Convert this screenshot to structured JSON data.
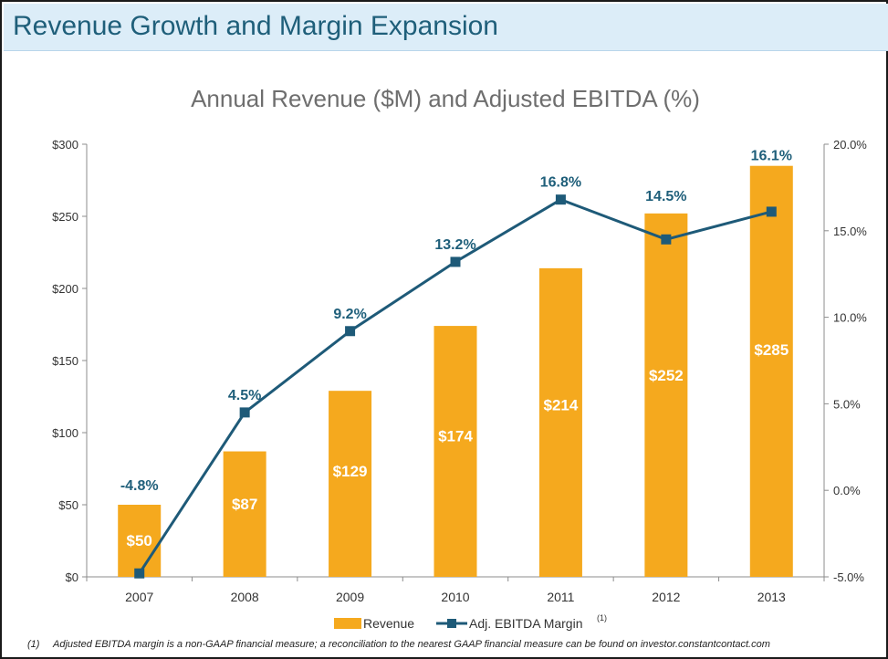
{
  "slide": {
    "title": "Revenue Growth and Margin Expansion",
    "footnote_marker": "(1)",
    "footnote_text": "Adjusted  EBITDA  margin is a non-GAAP financial measure; a reconciliation to the nearest GAAP financial measure can be found on investor.constantcontact.com"
  },
  "chart_data": {
    "type": "bar",
    "title": "Annual Revenue ($M) and Adjusted EBITDA (%)",
    "categories": [
      "2007",
      "2008",
      "2009",
      "2010",
      "2011",
      "2012",
      "2013"
    ],
    "series": [
      {
        "name": "Revenue",
        "type": "bar",
        "axis": "left",
        "values": [
          50,
          87,
          129,
          174,
          214,
          252,
          285
        ],
        "labels": [
          "$50",
          "$87",
          "$129",
          "$174",
          "$214",
          "$252",
          "$285"
        ],
        "color": "#f5a91e"
      },
      {
        "name": "Adj. EBITDA Margin",
        "name_superscript": "(1)",
        "type": "line",
        "axis": "right",
        "values": [
          -4.8,
          4.5,
          9.2,
          13.2,
          16.8,
          14.5,
          16.1
        ],
        "labels": [
          "-4.8%",
          "4.5%",
          "9.2%",
          "13.2%",
          "16.8%",
          "14.5%",
          "16.1%"
        ],
        "color": "#1e5a78"
      }
    ],
    "left_axis": {
      "ylim": [
        0,
        300
      ],
      "ticks": [
        0,
        50,
        100,
        150,
        200,
        250,
        300
      ],
      "tick_labels": [
        "$0",
        "$50",
        "$100",
        "$150",
        "$200",
        "$250",
        "$300"
      ]
    },
    "right_axis": {
      "ylim": [
        -5,
        20
      ],
      "ticks": [
        -5,
        0,
        5,
        10,
        15,
        20
      ],
      "tick_labels": [
        "-5.0%",
        "0.0%",
        "5.0%",
        "10.0%",
        "15.0%",
        "20.0%"
      ]
    },
    "grid": false,
    "legend": "bottom"
  }
}
